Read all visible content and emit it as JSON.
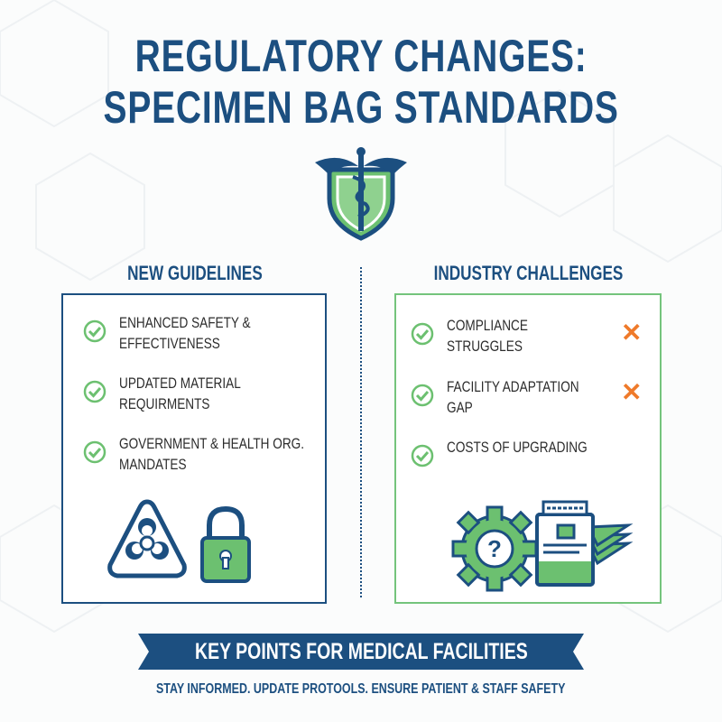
{
  "title": {
    "line1": "REGULATORY CHANGES:",
    "line2": "SPECIMEN BAG STANDARDS"
  },
  "colors": {
    "navy": "#1c4f80",
    "green": "#6cc070",
    "orange": "#ef7a2a"
  },
  "emblem": "caduceus-shield-icon",
  "left": {
    "heading": "NEW GUIDELINES",
    "items": [
      {
        "line1": "ENHANCED SAFETY &",
        "line2": "EFFECTIVENESS"
      },
      {
        "line1": "UPDATED MATERIAL",
        "line2": "REQUIRMENTS"
      },
      {
        "line1": "GOVERNMENT & HEALTH ORG.",
        "line2": "MANDATES"
      }
    ],
    "icons": [
      "biohazard-icon",
      "padlock-icon"
    ]
  },
  "right": {
    "heading": "INDUSTRY CHALLENGES",
    "items": [
      {
        "line1": "COMPLIANCE",
        "line2": "STRUGGLES",
        "mark": "✕"
      },
      {
        "line1": "FACILITY ADAPTATION",
        "line2": "GAP",
        "mark": "✕"
      },
      {
        "line1": "COSTS OF UPGRADING",
        "line2": ""
      }
    ],
    "icons": [
      "gear-question-icon",
      "specimen-bag-icon"
    ]
  },
  "banner": {
    "text": "KEY POINTS FOR MEDICAL FACILITIES"
  },
  "subtitle": "STAY INFORMED. UPDATE PROTOOLS. ENSURE PATIENT & STAFF SAFETY"
}
